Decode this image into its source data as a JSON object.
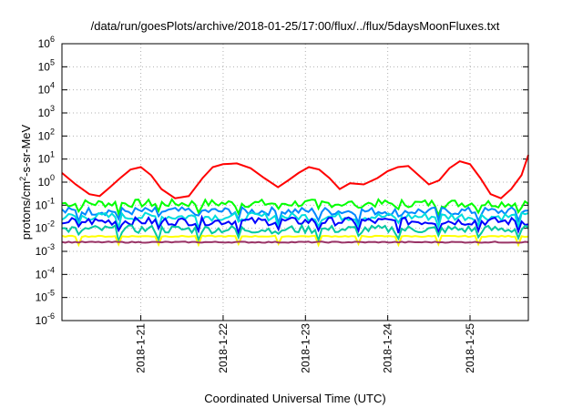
{
  "chart_data": {
    "type": "line",
    "title": "/data/run/goesPlots/archive/2018-01-25/17:00/flux/../flux/5daysMoonFluxes.txt",
    "xlabel": "Coordinated Universal Time (UTC)",
    "ylabel": "protons/cm²-s-sr-MeV",
    "yscale": "log",
    "ylim": [
      1e-06,
      1000000.0
    ],
    "ytick_labels": [
      {
        "base": "10",
        "exp": "-6"
      },
      {
        "base": "10",
        "exp": "-5"
      },
      {
        "base": "10",
        "exp": "-4"
      },
      {
        "base": "10",
        "exp": "-3"
      },
      {
        "base": "10",
        "exp": "-2"
      },
      {
        "base": "10",
        "exp": "-1"
      },
      {
        "base": "10",
        "exp": "0"
      },
      {
        "base": "10",
        "exp": "1"
      },
      {
        "base": "10",
        "exp": "2"
      },
      {
        "base": "10",
        "exp": "3"
      },
      {
        "base": "10",
        "exp": "4"
      },
      {
        "base": "10",
        "exp": "5"
      },
      {
        "base": "10",
        "exp": "6"
      }
    ],
    "xlim": [
      "2018-01-20T01:00",
      "2018-01-25T17:00"
    ],
    "xtick_labels": [
      "2018-1-21",
      "2018-1-22",
      "2018-1-23",
      "2018-1-24",
      "2018-1-25"
    ],
    "xtick_dates": [
      "2018-01-21",
      "2018-01-22",
      "2018-01-23",
      "2018-01-24",
      "2018-01-25"
    ],
    "grid": true,
    "series": [
      {
        "color": "#ff0000",
        "x": [
          "2018-01-20T01:00",
          "2018-01-20T05:00",
          "2018-01-20T09:00",
          "2018-01-20T12:00",
          "2018-01-20T15:00",
          "2018-01-20T18:00",
          "2018-01-20T21:00",
          "2018-01-21T00:00",
          "2018-01-21T03:00",
          "2018-01-21T06:00",
          "2018-01-21T10:00",
          "2018-01-21T14:00",
          "2018-01-21T18:00",
          "2018-01-21T21:00",
          "2018-01-22T00:00",
          "2018-01-22T04:00",
          "2018-01-22T08:00",
          "2018-01-22T12:00",
          "2018-01-22T16:00",
          "2018-01-22T19:00",
          "2018-01-22T22:00",
          "2018-01-23T01:00",
          "2018-01-23T04:00",
          "2018-01-23T07:00",
          "2018-01-23T10:00",
          "2018-01-23T13:00",
          "2018-01-23T17:00",
          "2018-01-23T21:00",
          "2018-01-24T00:00",
          "2018-01-24T03:00",
          "2018-01-24T06:00",
          "2018-01-24T09:00",
          "2018-01-24T12:00",
          "2018-01-24T15:00",
          "2018-01-24T18:00",
          "2018-01-24T21:00",
          "2018-01-25T00:00",
          "2018-01-25T03:00",
          "2018-01-25T06:00",
          "2018-01-25T09:00",
          "2018-01-25T12:00",
          "2018-01-25T15:00",
          "2018-01-25T17:00"
        ],
        "values": [
          2.5,
          0.8,
          0.3,
          0.25,
          0.6,
          1.5,
          3.5,
          4.5,
          2.0,
          0.5,
          0.2,
          0.25,
          1.5,
          4.5,
          6.0,
          6.5,
          4.0,
          1.5,
          0.6,
          1.2,
          2.5,
          4.5,
          3.5,
          1.5,
          0.5,
          0.9,
          0.8,
          1.5,
          3.0,
          4.5,
          5.0,
          2.0,
          0.8,
          1.2,
          4.0,
          8.0,
          6.0,
          1.5,
          0.3,
          0.2,
          0.5,
          2.0,
          15
        ]
      },
      {
        "color": "#00ff00",
        "value": 0.12
      },
      {
        "color": "#0088ff",
        "value": 0.055
      },
      {
        "color": "#00dddd",
        "value": 0.032
      },
      {
        "color": "#0000ff",
        "value": 0.02
      },
      {
        "color": "#00c8a0",
        "value": 0.009
      },
      {
        "color": "#ffff00",
        "value": 0.0045
      },
      {
        "color": "#993366",
        "value": 0.0025
      }
    ]
  }
}
